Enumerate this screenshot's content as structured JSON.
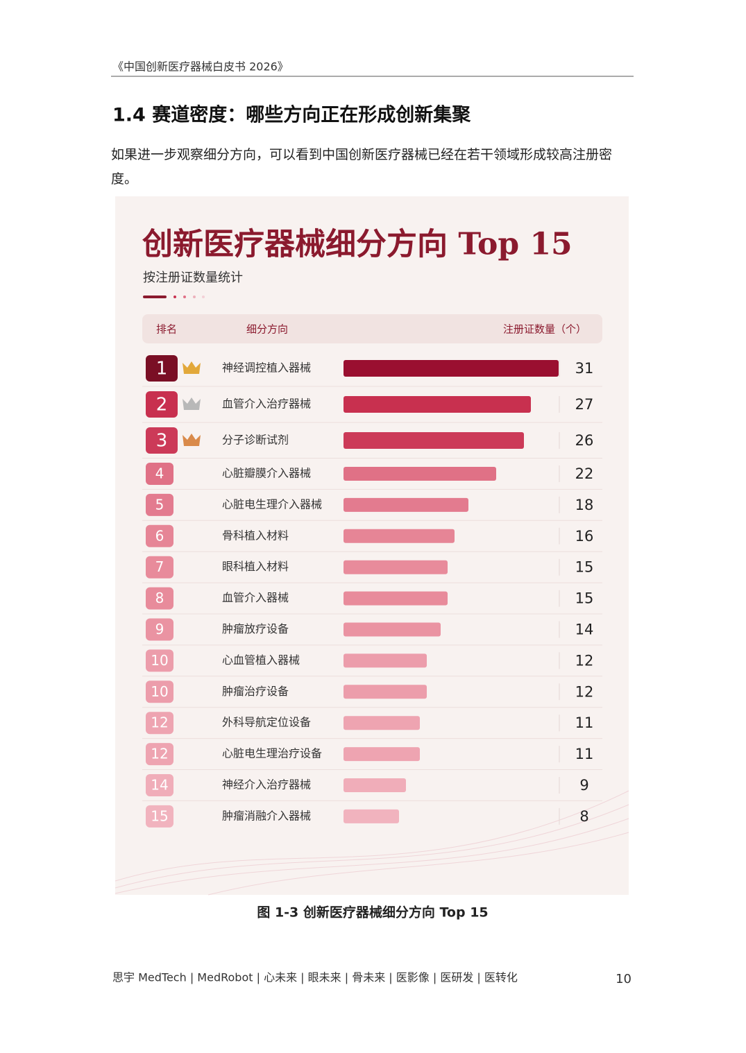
{
  "header": {
    "title": "《中国创新医疗器械白皮书 2026》"
  },
  "section": {
    "heading": "1.4  赛道密度：哪些方向正在形成创新集聚",
    "paragraph": "如果进一步观察细分方向，可以看到中国创新医疗器械已经在若干领域形成较高注册密度。"
  },
  "chart_data": {
    "type": "bar",
    "orientation": "horizontal",
    "title": "创新医疗器械细分方向 Top 15",
    "subtitle": "按注册证数量统计",
    "columns": [
      "排名",
      "细分方向",
      "注册证数量（个）"
    ],
    "ranks": [
      1,
      2,
      3,
      4,
      5,
      6,
      7,
      8,
      9,
      10,
      10,
      12,
      12,
      14,
      15
    ],
    "categories": [
      "神经调控植入器械",
      "血管介入治疗器械",
      "分子诊断试剂",
      "心脏瓣膜介入器械",
      "心脏电生理介入器械",
      "骨科植入材料",
      "眼科植入材料",
      "血管介入器械",
      "肿瘤放疗设备",
      "心血管植入器械",
      "肿瘤治疗设备",
      "外科导航定位设备",
      "心脏电生理治疗设备",
      "神经介入治疗器械",
      "肿瘤消融介入器械"
    ],
    "values": [
      31,
      27,
      26,
      22,
      18,
      16,
      15,
      15,
      14,
      12,
      12,
      11,
      11,
      9,
      8
    ],
    "colors": [
      "#9a0f30",
      "#c8304f",
      "#cc3a58",
      "#e07186",
      "#e37b8f",
      "#e68596",
      "#e88b9b",
      "#e88b9b",
      "#ea93a2",
      "#ec9dab",
      "#ec9dab",
      "#eea4b1",
      "#eea4b1",
      "#f0adb9",
      "#f1b3be"
    ]
  },
  "caption": "图 1-3  创新医疗器械细分方向 Top 15",
  "footer": {
    "text": "思宇 MedTech | MedRobot | 心未来 | 眼未来 | 骨未来 | 医影像 | 医研发 | 医转化",
    "page": 10
  }
}
